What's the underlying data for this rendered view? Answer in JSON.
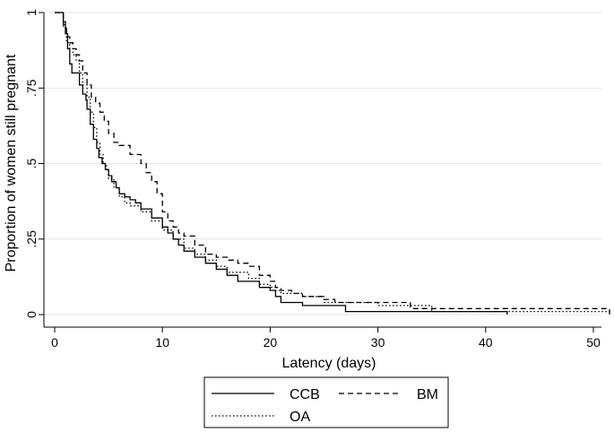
{
  "chart_data": {
    "type": "line",
    "step": true,
    "title": "",
    "xlabel": "Latency (days)",
    "ylabel": "Proportion of women still pregnant",
    "xlim": [
      0,
      51.5
    ],
    "ylim": [
      0,
      1
    ],
    "xticks": [
      0,
      10,
      20,
      30,
      40,
      50
    ],
    "yticks": [
      0,
      0.25,
      0.5,
      0.75,
      1
    ],
    "ytick_labels": [
      "0",
      ".25",
      ".5",
      ".75",
      "1"
    ],
    "grid": "horizontal",
    "legend": "bottom",
    "series": [
      {
        "name": "CCB",
        "dash": "solid",
        "x": [
          0,
          0.8,
          1.0,
          1.2,
          1.4,
          1.6,
          1.8,
          2.0,
          2.3,
          2.6,
          2.9,
          3.0,
          3.3,
          3.6,
          3.9,
          4.1,
          4.4,
          4.7,
          5.0,
          5.3,
          5.7,
          6.0,
          6.5,
          7.0,
          7.5,
          8.0,
          9.0,
          10.0,
          10.5,
          11.0,
          11.5,
          12.0,
          13.0,
          14.0,
          15.0,
          16.0,
          17.0,
          19.0,
          20.0,
          20.5,
          21.0,
          23.0,
          27.0,
          42.0
        ],
        "y": [
          1,
          0.97,
          0.93,
          0.88,
          0.83,
          0.8,
          0.8,
          0.8,
          0.76,
          0.73,
          0.71,
          0.68,
          0.63,
          0.58,
          0.55,
          0.52,
          0.5,
          0.48,
          0.46,
          0.44,
          0.42,
          0.4,
          0.39,
          0.38,
          0.37,
          0.35,
          0.32,
          0.29,
          0.27,
          0.25,
          0.23,
          0.21,
          0.19,
          0.17,
          0.15,
          0.13,
          0.11,
          0.09,
          0.08,
          0.06,
          0.04,
          0.03,
          0.01,
          0.0
        ]
      },
      {
        "name": "BM",
        "dash": "dashed",
        "x": [
          0,
          0.8,
          1.1,
          1.4,
          1.7,
          2.0,
          2.3,
          2.6,
          3.0,
          3.4,
          3.8,
          4.2,
          4.6,
          5.0,
          5.5,
          6.0,
          7.0,
          8.0,
          8.5,
          9.0,
          9.5,
          10.0,
          10.5,
          11.0,
          11.5,
          12.0,
          13.0,
          14.0,
          15.0,
          16.0,
          17.0,
          18.0,
          19.0,
          20.0,
          20.5,
          21.0,
          22.0,
          23.0,
          25.0,
          26.0,
          33.0,
          51.5
        ],
        "y": [
          1,
          0.96,
          0.92,
          0.9,
          0.88,
          0.86,
          0.84,
          0.8,
          0.76,
          0.72,
          0.7,
          0.67,
          0.64,
          0.6,
          0.57,
          0.56,
          0.53,
          0.5,
          0.47,
          0.44,
          0.4,
          0.34,
          0.31,
          0.29,
          0.27,
          0.26,
          0.23,
          0.2,
          0.19,
          0.18,
          0.17,
          0.16,
          0.13,
          0.11,
          0.09,
          0.08,
          0.07,
          0.06,
          0.05,
          0.04,
          0.02,
          0.0
        ]
      },
      {
        "name": "OA",
        "dash": "dotted",
        "x": [
          0,
          0.8,
          1.1,
          1.4,
          1.7,
          2.0,
          2.3,
          2.6,
          3.0,
          3.3,
          3.6,
          3.9,
          4.2,
          4.5,
          4.8,
          5.0,
          5.5,
          6.0,
          6.5,
          7.0,
          8.0,
          9.0,
          10.0,
          11.0,
          12.0,
          13.0,
          14.0,
          15.0,
          16.0,
          18.0,
          19.0,
          20.0,
          20.5,
          21.0,
          23.0,
          25.0,
          30.0,
          35.0,
          51.5
        ],
        "y": [
          1,
          0.95,
          0.9,
          0.88,
          0.86,
          0.84,
          0.8,
          0.76,
          0.72,
          0.67,
          0.62,
          0.57,
          0.53,
          0.5,
          0.48,
          0.45,
          0.42,
          0.39,
          0.37,
          0.36,
          0.34,
          0.31,
          0.28,
          0.25,
          0.22,
          0.2,
          0.18,
          0.16,
          0.14,
          0.12,
          0.1,
          0.09,
          0.08,
          0.07,
          0.06,
          0.04,
          0.03,
          0.01,
          0.0
        ]
      }
    ]
  }
}
